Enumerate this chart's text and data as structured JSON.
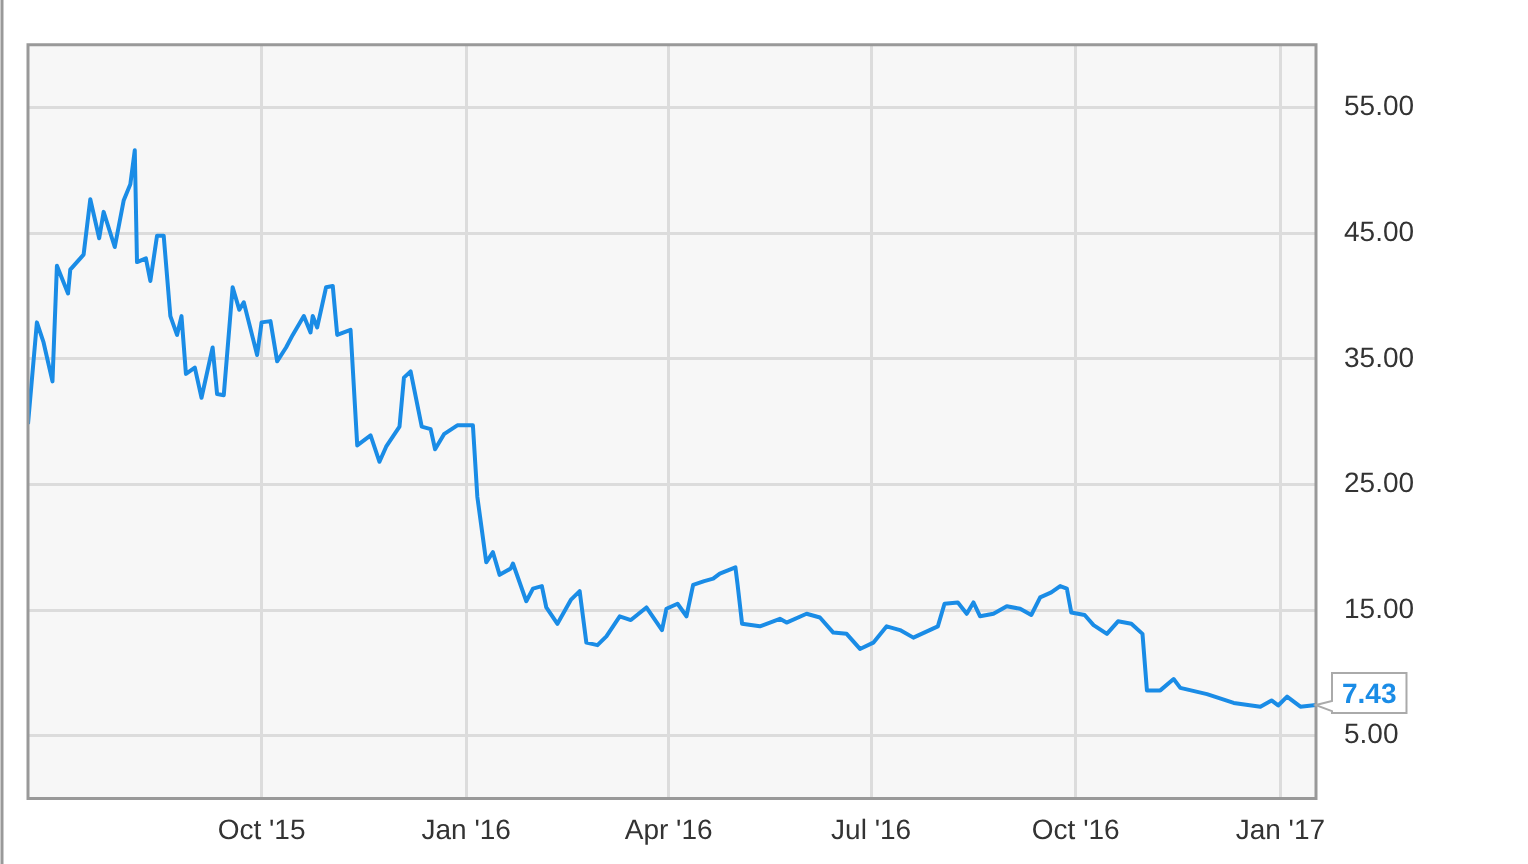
{
  "chart_data": {
    "type": "line",
    "x": [
      "2015-06-18",
      "2015-06-22",
      "2015-06-25",
      "2015-06-29",
      "2015-07-01",
      "2015-07-06",
      "2015-07-07",
      "2015-07-13",
      "2015-07-16",
      "2015-07-20",
      "2015-07-22",
      "2015-07-27",
      "2015-07-31",
      "2015-08-03",
      "2015-08-05",
      "2015-08-06",
      "2015-08-10",
      "2015-08-12",
      "2015-08-15",
      "2015-08-18",
      "2015-08-21",
      "2015-08-24",
      "2015-08-26",
      "2015-08-28",
      "2015-09-01",
      "2015-09-04",
      "2015-09-09",
      "2015-09-11",
      "2015-09-14",
      "2015-09-18",
      "2015-09-21",
      "2015-09-23",
      "2015-09-29",
      "2015-10-01",
      "2015-10-05",
      "2015-10-08",
      "2015-10-12",
      "2015-10-15",
      "2015-10-20",
      "2015-10-23",
      "2015-10-24",
      "2015-10-26",
      "2015-10-30",
      "2015-11-02",
      "2015-11-04",
      "2015-11-10",
      "2015-11-13",
      "2015-11-19",
      "2015-11-23",
      "2015-11-26",
      "2015-12-02",
      "2015-12-04",
      "2015-12-07",
      "2015-12-12",
      "2015-12-16",
      "2015-12-18",
      "2015-12-22",
      "2015-12-28",
      "2016-01-04",
      "2016-01-06",
      "2016-01-08",
      "2016-01-10",
      "2016-01-13",
      "2016-01-16",
      "2016-01-21",
      "2016-01-22",
      "2016-01-28",
      "2016-01-31",
      "2016-02-04",
      "2016-02-06",
      "2016-02-11",
      "2016-02-17",
      "2016-02-21",
      "2016-02-24",
      "2016-02-29",
      "2016-03-04",
      "2016-03-10",
      "2016-03-15",
      "2016-03-22",
      "2016-03-29",
      "2016-03-31",
      "2016-04-05",
      "2016-04-09",
      "2016-04-12",
      "2016-04-17",
      "2016-04-21",
      "2016-04-24",
      "2016-05-01",
      "2016-05-02",
      "2016-05-04",
      "2016-05-12",
      "2016-05-21",
      "2016-05-24",
      "2016-06-02",
      "2016-06-08",
      "2016-06-14",
      "2016-06-20",
      "2016-06-26",
      "2016-07-02",
      "2016-07-08",
      "2016-07-14",
      "2016-07-20",
      "2016-07-31",
      "2016-08-03",
      "2016-08-09",
      "2016-08-13",
      "2016-08-16",
      "2016-08-19",
      "2016-08-25",
      "2016-08-31",
      "2016-09-06",
      "2016-09-11",
      "2016-09-15",
      "2016-09-20",
      "2016-09-24",
      "2016-09-27",
      "2016-09-29",
      "2016-10-05",
      "2016-10-09",
      "2016-10-15",
      "2016-10-20",
      "2016-10-26",
      "2016-10-31",
      "2016-11-02",
      "2016-11-08",
      "2016-11-14",
      "2016-11-17",
      "2016-11-29",
      "2016-12-11",
      "2016-12-23",
      "2016-12-28",
      "2016-12-31",
      "2017-01-04",
      "2017-01-10",
      "2017-01-17"
    ],
    "series": [
      {
        "color": "#1a8ce6",
        "values": [
          29.8,
          37.9,
          36.3,
          33.2,
          42.4,
          40.2,
          42.1,
          43.3,
          47.7,
          44.6,
          46.7,
          43.9,
          47.6,
          48.9,
          51.6,
          42.7,
          43.0,
          41.2,
          44.8,
          44.8,
          38.4,
          36.9,
          38.4,
          33.8,
          34.3,
          31.9,
          35.9,
          32.2,
          32.1,
          40.7,
          38.9,
          39.5,
          35.3,
          37.9,
          38.0,
          34.8,
          35.9,
          36.9,
          38.4,
          37.1,
          38.4,
          37.5,
          40.7,
          40.8,
          36.9,
          37.3,
          28.1,
          28.9,
          26.8,
          28.0,
          29.6,
          33.5,
          34.0,
          29.6,
          29.4,
          27.8,
          29.0,
          29.7,
          29.7,
          24.0,
          21.4,
          18.8,
          19.6,
          17.8,
          18.3,
          18.7,
          15.7,
          16.7,
          16.9,
          15.2,
          13.9,
          15.8,
          16.5,
          12.4,
          12.2,
          12.9,
          14.5,
          14.2,
          15.2,
          13.4,
          15.1,
          15.5,
          14.5,
          17.0,
          17.3,
          17.5,
          17.9,
          18.4,
          17.0,
          13.9,
          13.7,
          14.3,
          14.0,
          14.7,
          14.4,
          13.2,
          13.1,
          11.9,
          12.4,
          13.7,
          13.4,
          12.8,
          13.7,
          15.5,
          15.6,
          14.7,
          15.6,
          14.5,
          14.7,
          15.3,
          15.1,
          14.6,
          16.0,
          16.4,
          16.9,
          16.7,
          14.8,
          14.6,
          13.8,
          13.1,
          14.1,
          13.9,
          13.1,
          8.6,
          8.6,
          9.5,
          8.8,
          8.3,
          7.6,
          7.3,
          7.8,
          7.4,
          8.1,
          7.3,
          7.43
        ]
      }
    ],
    "xlim": [
      "2015-06-18",
      "2017-01-17"
    ],
    "xticks": [
      {
        "value": "2015-10-01",
        "label": "Oct '15"
      },
      {
        "value": "2016-01-01",
        "label": "Jan '16"
      },
      {
        "value": "2016-04-01",
        "label": "Apr '16"
      },
      {
        "value": "2016-07-01",
        "label": "Jul '16"
      },
      {
        "value": "2016-10-01",
        "label": "Oct '16"
      },
      {
        "value": "2017-01-01",
        "label": "Jan '17"
      }
    ],
    "ylim": [
      0,
      60
    ],
    "yticks": [
      {
        "value": 5,
        "label": "5.00"
      },
      {
        "value": 15,
        "label": "15.00"
      },
      {
        "value": 25,
        "label": "25.00"
      },
      {
        "value": 35,
        "label": "35.00"
      },
      {
        "value": 45,
        "label": "45.00"
      },
      {
        "value": 55,
        "label": "55.00"
      }
    ],
    "annotations": [
      {
        "text": "7.43",
        "x": "2017-01-17",
        "y": 7.43
      }
    ],
    "grid": true,
    "legend": false,
    "marker": "none",
    "line_style": "solid"
  }
}
